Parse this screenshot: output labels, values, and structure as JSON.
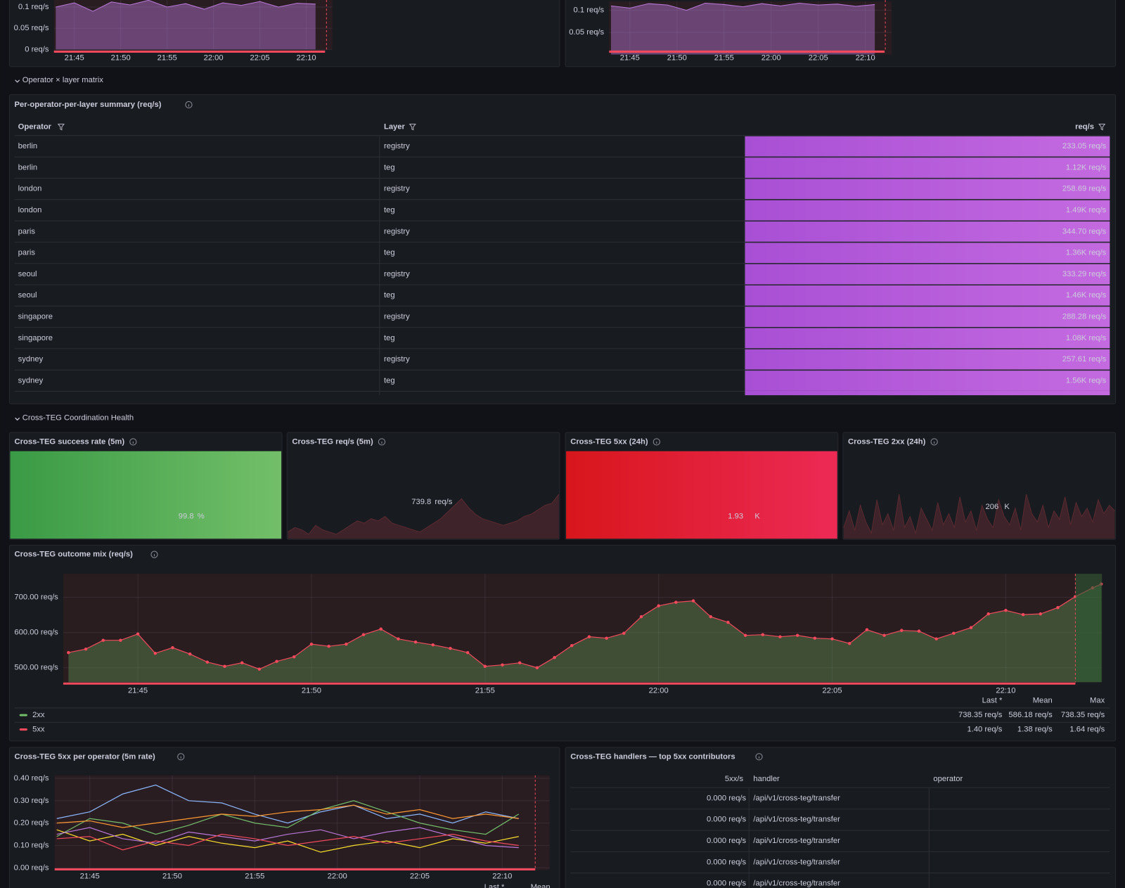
{
  "chart_data": [
    {
      "type": "area",
      "x": [
        1303,
        1305,
        1307,
        1309,
        1311,
        1313,
        1315,
        1317,
        1319,
        1321,
        1323,
        1325,
        1327,
        1329,
        1331
      ],
      "series": [
        {
          "color": "#b877d9",
          "values": [
            0.1,
            0.11,
            0.09,
            0.112,
            0.105,
            0.116,
            0.1,
            0.108,
            0.095,
            0.11,
            0.104,
            0.113,
            0.1,
            0.109,
            0.107
          ]
        }
      ],
      "xlim": [
        1302.8,
        1332.8
      ],
      "xticks": [
        {
          "value": 1305,
          "label": "21:45"
        },
        {
          "value": 1310,
          "label": "21:50"
        },
        {
          "value": 1315,
          "label": "21:55"
        },
        {
          "value": 1320,
          "label": "22:00"
        },
        {
          "value": 1325,
          "label": "22:05"
        },
        {
          "value": 1330,
          "label": "22:10"
        }
      ],
      "ylim": [
        0,
        0.12
      ],
      "yticks": [
        {
          "value": 0,
          "label": "0 req/s"
        },
        {
          "value": 0.05,
          "label": "0.05 req/s"
        },
        {
          "value": 0.1,
          "label": "0.1 req/s"
        }
      ]
    },
    {
      "type": "area",
      "x": [
        1303,
        1305,
        1307,
        1309,
        1311,
        1313,
        1315,
        1317,
        1319,
        1321,
        1323,
        1325,
        1327,
        1329,
        1331
      ],
      "series": [
        {
          "color": "#b877d9",
          "values": [
            0.11,
            0.105,
            0.115,
            0.112,
            0.1,
            0.116,
            0.113,
            0.108,
            0.115,
            0.11,
            0.116,
            0.112,
            0.114,
            0.109,
            0.113
          ]
        }
      ],
      "xlim": [
        1302.8,
        1332.8
      ],
      "xticks": [
        {
          "value": 1305,
          "label": "21:45"
        },
        {
          "value": 1310,
          "label": "21:50"
        },
        {
          "value": 1315,
          "label": "21:55"
        },
        {
          "value": 1320,
          "label": "22:00"
        },
        {
          "value": 1325,
          "label": "22:05"
        },
        {
          "value": 1330,
          "label": "22:10"
        }
      ],
      "ylim": [
        0,
        0.12
      ],
      "yticks": [
        {
          "value": 0.05,
          "label": "0.05 req/s"
        },
        {
          "value": 0.1,
          "label": "0.1 req/s"
        }
      ]
    },
    {
      "type": "line",
      "title": "Cross-TEG outcome mix (req/s)",
      "fill": true,
      "points": true,
      "line_color": "#f2495c",
      "x": [
        1303,
        1303.5,
        1304,
        1304.5,
        1305,
        1305.5,
        1306,
        1306.5,
        1307,
        1307.5,
        1308,
        1308.5,
        1309,
        1309.5,
        1310,
        1310.5,
        1311,
        1311.5,
        1312,
        1312.5,
        1313,
        1313.5,
        1314,
        1314.5,
        1315,
        1315.5,
        1316,
        1316.5,
        1317,
        1317.5,
        1318,
        1318.5,
        1319,
        1319.5,
        1320,
        1320.5,
        1321,
        1321.5,
        1322,
        1322.5,
        1323,
        1323.5,
        1324,
        1324.5,
        1325,
        1325.5,
        1326,
        1326.5,
        1327,
        1327.5,
        1328,
        1328.5,
        1329,
        1329.5,
        1330,
        1330.5,
        1331,
        1331.5,
        1332,
        1332.5,
        1332.75
      ],
      "series": [
        {
          "name": "2xx",
          "color": "#73bf69",
          "values": [
            543,
            553,
            578,
            578,
            596,
            541,
            557,
            539,
            516,
            504,
            514,
            496,
            518,
            531,
            567,
            561,
            567,
            594,
            610,
            582,
            573,
            565,
            555,
            543,
            504,
            508,
            514,
            500,
            529,
            563,
            588,
            584,
            598,
            645,
            676,
            686,
            690,
            645,
            629,
            592,
            594,
            588,
            592,
            584,
            582,
            569,
            608,
            592,
            606,
            604,
            582,
            598,
            614,
            653,
            663,
            651,
            653,
            671,
            702,
            727,
            738
          ],
          "legend": [
            "738.35 req/s",
            "586.18 req/s",
            "738.35 req/s"
          ]
        },
        {
          "name": "5xx",
          "color": "#f2495c",
          "legend": [
            "1.40 req/s",
            "1.38 req/s",
            "1.64 req/s"
          ]
        }
      ],
      "legend_columns": [
        "Last *",
        "Mean",
        "Max"
      ],
      "xlim": [
        1302.85,
        1332.77
      ],
      "xticks": [
        {
          "value": 1305,
          "label": "21:45"
        },
        {
          "value": 1310,
          "label": "21:50"
        },
        {
          "value": 1315,
          "label": "21:55"
        },
        {
          "value": 1320,
          "label": "22:00"
        },
        {
          "value": 1325,
          "label": "22:05"
        },
        {
          "value": 1330,
          "label": "22:10"
        }
      ],
      "ylim": [
        459,
        767
      ],
      "yticks": [
        {
          "value": 500,
          "label": "500.00 req/s"
        },
        {
          "value": 600,
          "label": "600.00 req/s"
        },
        {
          "value": 700,
          "label": "700.00 req/s"
        }
      ]
    },
    {
      "type": "line",
      "title": "Cross-TEG 5xx per operator (5m rate)",
      "x": [
        1303,
        1305,
        1307,
        1309,
        1311,
        1313,
        1315,
        1317,
        1319,
        1321,
        1323,
        1325,
        1327,
        1329,
        1331
      ],
      "series": [
        {
          "color": "#8ab8ff",
          "values": [
            0.22,
            0.25,
            0.33,
            0.37,
            0.3,
            0.29,
            0.24,
            0.2,
            0.25,
            0.28,
            0.22,
            0.24,
            0.2,
            0.25,
            0.22
          ]
        },
        {
          "color": "#73bf69",
          "values": [
            0.14,
            0.22,
            0.2,
            0.15,
            0.19,
            0.24,
            0.2,
            0.18,
            0.26,
            0.3,
            0.25,
            0.2,
            0.17,
            0.15,
            0.24
          ]
        },
        {
          "color": "#ff9830",
          "values": [
            0.2,
            0.21,
            0.18,
            0.2,
            0.22,
            0.24,
            0.23,
            0.25,
            0.26,
            0.28,
            0.24,
            0.26,
            0.22,
            0.24,
            0.22
          ]
        },
        {
          "color": "#fade2a",
          "values": [
            0.17,
            0.12,
            0.15,
            0.1,
            0.14,
            0.11,
            0.09,
            0.12,
            0.07,
            0.1,
            0.12,
            0.09,
            0.13,
            0.11,
            0.14
          ]
        },
        {
          "color": "#b877d9",
          "values": [
            0.15,
            0.18,
            0.13,
            0.11,
            0.16,
            0.14,
            0.12,
            0.15,
            0.17,
            0.13,
            0.16,
            0.18,
            0.14,
            0.1,
            0.09
          ]
        },
        {
          "color": "#f2495c",
          "values": [
            0.13,
            0.14,
            0.08,
            0.12,
            0.1,
            0.15,
            0.13,
            0.1,
            0.12,
            0.14,
            0.11,
            0.13,
            0.15,
            0.12,
            0.1
          ]
        }
      ],
      "legend_columns": [
        "Last *",
        "Mean"
      ],
      "xlim": [
        1302.87,
        1332.87
      ],
      "xticks": [
        {
          "value": 1305,
          "label": "21:45"
        },
        {
          "value": 1310,
          "label": "21:50"
        },
        {
          "value": 1315,
          "label": "21:55"
        },
        {
          "value": 1320,
          "label": "22:00"
        },
        {
          "value": 1325,
          "label": "22:05"
        },
        {
          "value": 1330,
          "label": "22:10"
        }
      ],
      "ylim": [
        -0.01,
        0.413
      ],
      "yticks": [
        {
          "value": 0,
          "label": "0.00 req/s"
        },
        {
          "value": 0.1,
          "label": "0.10 req/s"
        },
        {
          "value": 0.2,
          "label": "0.20 req/s"
        },
        {
          "value": 0.3,
          "label": "0.30 req/s"
        },
        {
          "value": 0.4,
          "label": "0.40 req/s"
        }
      ]
    }
  ],
  "sections": [
    "Operator × layer matrix",
    "Cross-TEG Coordination Health"
  ],
  "summary_table": {
    "title": "Per-operator-per-layer summary (req/s)",
    "columns": [
      "Operator",
      "Layer",
      "req/s"
    ],
    "rows": [
      [
        "berlin",
        "registry",
        "233.05 req/s"
      ],
      [
        "berlin",
        "teg",
        "1.12K req/s"
      ],
      [
        "london",
        "registry",
        "258.69 req/s"
      ],
      [
        "london",
        "teg",
        "1.49K req/s"
      ],
      [
        "paris",
        "registry",
        "344.70 req/s"
      ],
      [
        "paris",
        "teg",
        "1.36K req/s"
      ],
      [
        "seoul",
        "registry",
        "333.29 req/s"
      ],
      [
        "seoul",
        "teg",
        "1.46K req/s"
      ],
      [
        "singapore",
        "registry",
        "288.28 req/s"
      ],
      [
        "singapore",
        "teg",
        "1.08K req/s"
      ],
      [
        "sydney",
        "registry",
        "257.61 req/s"
      ],
      [
        "sydney",
        "teg",
        "1.56K req/s"
      ]
    ]
  },
  "stats": [
    {
      "title": "Cross-TEG success rate (5m)",
      "value": "99.8",
      "unit": "%"
    },
    {
      "title": "Cross-TEG req/s (5m)",
      "value": "739.8",
      "unit": "req/s",
      "sparkline": [
        3,
        5,
        4,
        2,
        6,
        4,
        3,
        2,
        4,
        6,
        8,
        7,
        9,
        8,
        10,
        7,
        6,
        5,
        4,
        3,
        5,
        7,
        9,
        12,
        15,
        18,
        14,
        11,
        9,
        8,
        7,
        6,
        7,
        8,
        10,
        11,
        13,
        15,
        16,
        20
      ]
    },
    {
      "title": "Cross-TEG 5xx (24h)",
      "value": "1.93",
      "unit": "K"
    },
    {
      "title": "Cross-TEG 2xx (24h)",
      "value": "206",
      "unit": "K",
      "sparkline": [
        4,
        10,
        3,
        12,
        6,
        2,
        14,
        5,
        9,
        3,
        16,
        4,
        8,
        2,
        11,
        7,
        3,
        13,
        5,
        9,
        4,
        15,
        6,
        10,
        3,
        12,
        7,
        4,
        14,
        8,
        5,
        11,
        3,
        16,
        9,
        6,
        12,
        4,
        10,
        7,
        15,
        5,
        13,
        8,
        11,
        6,
        14,
        9,
        12,
        10
      ]
    }
  ],
  "handlers_table": {
    "title": "Cross-TEG handlers — top 5xx contributors",
    "columns": [
      "5xx/s",
      "handler",
      "operator"
    ],
    "rows": [
      [
        "0.000 req/s",
        "/api/v1/cross-teg/transfer"
      ],
      [
        "0.000 req/s",
        "/api/v1/cross-teg/transfer"
      ],
      [
        "0.000 req/s",
        "/api/v1/cross-teg/transfer"
      ],
      [
        "0.000 req/s",
        "/api/v1/cross-teg/transfer"
      ],
      [
        "0.000 req/s",
        "/api/v1/cross-teg/transfer"
      ]
    ]
  }
}
